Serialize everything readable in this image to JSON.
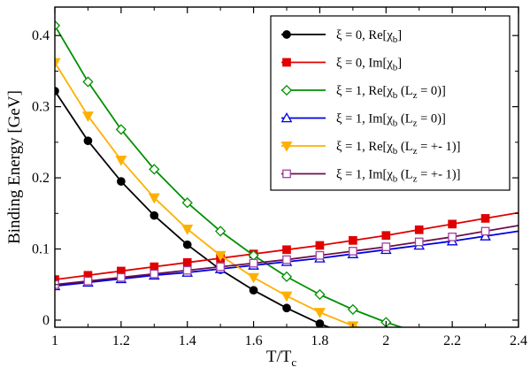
{
  "chart_data": {
    "type": "line",
    "xlabel": "T/T",
    "xlabel_sub": "c",
    "ylabel": "Binding Energy [GeV]",
    "xlim": [
      1.0,
      2.4
    ],
    "ylim": [
      -0.01,
      0.44
    ],
    "xticks": [
      "1",
      "1.2",
      "1.4",
      "1.6",
      "1.8",
      "2",
      "2.2",
      "2.4"
    ],
    "yticks": [
      "0",
      "0.1",
      "0.2",
      "0.3",
      "0.4"
    ],
    "grid": false,
    "legend_position": "top-right",
    "series": [
      {
        "name": "ξ = 0, Re[χb]",
        "legend_parts": [
          {
            "t": "ξ = 0, Re[χ",
            "sub": false
          },
          {
            "t": "b",
            "sub": true
          },
          {
            "t": "]",
            "sub": false
          }
        ],
        "color": "#000000",
        "marker": "circle-filled",
        "x": [
          1.0,
          1.1,
          1.2,
          1.3,
          1.4,
          1.5,
          1.6,
          1.7,
          1.8,
          1.85
        ],
        "y": [
          0.322,
          0.252,
          0.195,
          0.147,
          0.106,
          0.071,
          0.042,
          0.017,
          -0.005,
          -0.014
        ],
        "markers": [
          1,
          1,
          1,
          1,
          1,
          1,
          1,
          1,
          1,
          0
        ]
      },
      {
        "name": "ξ = 0, Im[χb]",
        "legend_parts": [
          {
            "t": "ξ = 0, Im[χ",
            "sub": false
          },
          {
            "t": "b",
            "sub": true
          },
          {
            "t": "]",
            "sub": false
          }
        ],
        "color": "#e00000",
        "marker": "square-filled",
        "x": [
          1.0,
          1.1,
          1.2,
          1.3,
          1.4,
          1.5,
          1.6,
          1.7,
          1.8,
          1.9,
          2.0,
          2.1,
          2.2,
          2.3,
          2.4
        ],
        "y": [
          0.057,
          0.063,
          0.069,
          0.075,
          0.081,
          0.087,
          0.093,
          0.099,
          0.105,
          0.112,
          0.119,
          0.127,
          0.135,
          0.143,
          0.151
        ],
        "markers": [
          1,
          1,
          1,
          1,
          1,
          1,
          1,
          1,
          1,
          1,
          1,
          1,
          1,
          1,
          0
        ]
      },
      {
        "name": "ξ = 1, Re[χb (Lz = 0)]",
        "legend_parts": [
          {
            "t": "ξ = 1, Re[χ",
            "sub": false
          },
          {
            "t": "b",
            "sub": true
          },
          {
            "t": " (L",
            "sub": false
          },
          {
            "t": "z",
            "sub": true
          },
          {
            "t": " = 0)]",
            "sub": false
          }
        ],
        "color": "#009000",
        "marker": "diamond-open",
        "x": [
          1.0,
          1.1,
          1.2,
          1.3,
          1.4,
          1.5,
          1.6,
          1.7,
          1.8,
          1.9,
          2.0,
          2.06
        ],
        "y": [
          0.414,
          0.335,
          0.268,
          0.212,
          0.165,
          0.125,
          0.091,
          0.061,
          0.036,
          0.015,
          -0.003,
          -0.012
        ],
        "markers": [
          1,
          1,
          1,
          1,
          1,
          1,
          1,
          1,
          1,
          1,
          1,
          0
        ]
      },
      {
        "name": "ξ = 1, Im[χb (Lz = 0)]",
        "legend_parts": [
          {
            "t": "ξ = 1, Im[χ",
            "sub": false
          },
          {
            "t": "b",
            "sub": true
          },
          {
            "t": " (L",
            "sub": false
          },
          {
            "t": "z",
            "sub": true
          },
          {
            "t": " = 0)]",
            "sub": false
          }
        ],
        "color": "#0000e0",
        "marker": "triangle-up-open",
        "x": [
          1.0,
          1.1,
          1.2,
          1.3,
          1.4,
          1.5,
          1.6,
          1.7,
          1.8,
          1.9,
          2.0,
          2.1,
          2.2,
          2.3,
          2.4
        ],
        "y": [
          0.048,
          0.053,
          0.058,
          0.063,
          0.067,
          0.072,
          0.077,
          0.082,
          0.087,
          0.093,
          0.099,
          0.105,
          0.111,
          0.118,
          0.125
        ],
        "markers": [
          1,
          1,
          1,
          1,
          1,
          1,
          1,
          1,
          1,
          1,
          1,
          1,
          1,
          1,
          0
        ]
      },
      {
        "name": "ξ = 1, Re[χb (Lz = +- 1)]",
        "legend_parts": [
          {
            "t": "ξ = 1, Re[χ",
            "sub": false
          },
          {
            "t": "b",
            "sub": true
          },
          {
            "t": " (L",
            "sub": false
          },
          {
            "t": "z",
            "sub": true
          },
          {
            "t": " = +- 1)]",
            "sub": false
          }
        ],
        "color": "#ffb000",
        "marker": "triangle-down-filled",
        "x": [
          1.0,
          1.1,
          1.2,
          1.3,
          1.4,
          1.5,
          1.6,
          1.7,
          1.8,
          1.9,
          1.95
        ],
        "y": [
          0.362,
          0.287,
          0.225,
          0.172,
          0.128,
          0.091,
          0.06,
          0.034,
          0.011,
          -0.008,
          -0.014
        ],
        "markers": [
          1,
          1,
          1,
          1,
          1,
          1,
          1,
          1,
          1,
          1,
          0
        ]
      },
      {
        "name": "ξ = 1, Im[χb (Lz = +- 1)]",
        "legend_parts": [
          {
            "t": "ξ = 1, Im[χ",
            "sub": false
          },
          {
            "t": "b",
            "sub": true
          },
          {
            "t": " (L",
            "sub": false
          },
          {
            "t": "z",
            "sub": true
          },
          {
            "t": " = +- 1)]",
            "sub": false
          }
        ],
        "color": "#6b0f4a",
        "marker_edge": "#a040a0",
        "marker": "square-open",
        "x": [
          1.0,
          1.1,
          1.2,
          1.3,
          1.4,
          1.5,
          1.6,
          1.7,
          1.8,
          1.9,
          2.0,
          2.1,
          2.2,
          2.3,
          2.4
        ],
        "y": [
          0.05,
          0.055,
          0.06,
          0.065,
          0.07,
          0.075,
          0.08,
          0.085,
          0.091,
          0.097,
          0.103,
          0.11,
          0.117,
          0.125,
          0.133
        ],
        "markers": [
          1,
          1,
          1,
          1,
          1,
          1,
          1,
          1,
          1,
          1,
          1,
          1,
          1,
          1,
          0
        ]
      }
    ]
  }
}
